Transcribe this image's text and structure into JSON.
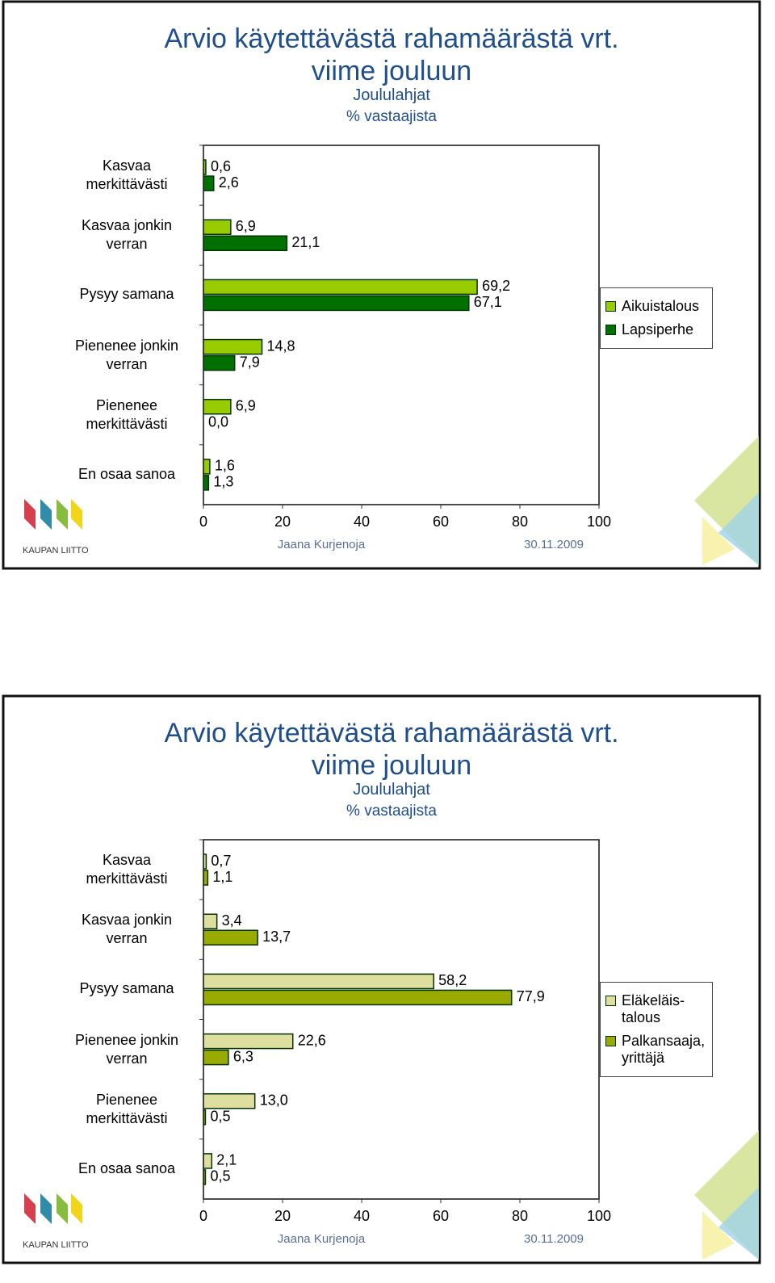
{
  "chart_data": [
    {
      "type": "bar",
      "title": "Arvio käytettävästä rahamäärästä vrt. viime jouluun",
      "subtitle": "Joululahjat",
      "unit_note": "% vastaajista",
      "categories": [
        "Kasvaa merkittävästi",
        "Kasvaa jonkin verran",
        "Pysyy samana",
        "Pienenee jonkin verran",
        "Pienenee merkittävästi",
        "En osaa sanoa"
      ],
      "series": [
        {
          "name": "Aikuistalous",
          "color": "#99cc00",
          "values": [
            0.6,
            6.9,
            69.2,
            14.8,
            6.9,
            1.6
          ],
          "value_labels": [
            "0,6",
            "6,9",
            "69,2",
            "14,8",
            "6,9",
            "1,6"
          ]
        },
        {
          "name": "Lapsiperhe",
          "color": "#007000",
          "values": [
            2.6,
            21.1,
            67.1,
            7.9,
            0.0,
            1.3
          ],
          "value_labels": [
            "2,6",
            "21,1",
            "67,1",
            "7,9",
            "0,0",
            "1,3"
          ]
        }
      ],
      "xlim": [
        0,
        100
      ],
      "xticks": [
        0,
        20,
        40,
        60,
        80,
        100
      ],
      "legend": "right",
      "author": "Jaana Kurjenoja",
      "date": "30.11.2009",
      "logo_text": "KAUPAN LIITTO"
    },
    {
      "type": "bar",
      "title": "Arvio käytettävästä rahamäärästä vrt. viime jouluun",
      "subtitle": "Joululahjat",
      "unit_note": "% vastaajista",
      "categories": [
        "Kasvaa merkittävästi",
        "Kasvaa jonkin verran",
        "Pysyy samana",
        "Pienenee jonkin verran",
        "Pienenee merkittävästi",
        "En osaa sanoa"
      ],
      "series": [
        {
          "name": "Eläkeläis-talous",
          "color": "#dede9e",
          "values": [
            0.7,
            3.4,
            58.2,
            22.6,
            13.0,
            2.1
          ],
          "value_labels": [
            "0,7",
            "3,4",
            "58,2",
            "22,6",
            "13,0",
            "2,1"
          ]
        },
        {
          "name": "Palkansaaja, yrittäjä",
          "color": "#99aa00",
          "values": [
            1.1,
            13.7,
            77.9,
            6.3,
            0.5,
            0.5
          ],
          "value_labels": [
            "1,1",
            "13,7",
            "77,9",
            "6,3",
            "0,5",
            "0,5"
          ]
        }
      ],
      "xlim": [
        0,
        100
      ],
      "xticks": [
        0,
        20,
        40,
        60,
        80,
        100
      ],
      "legend": "right",
      "author": "Jaana Kurjenoja",
      "date": "30.11.2009",
      "logo_text": "KAUPAN LIITTO"
    }
  ]
}
